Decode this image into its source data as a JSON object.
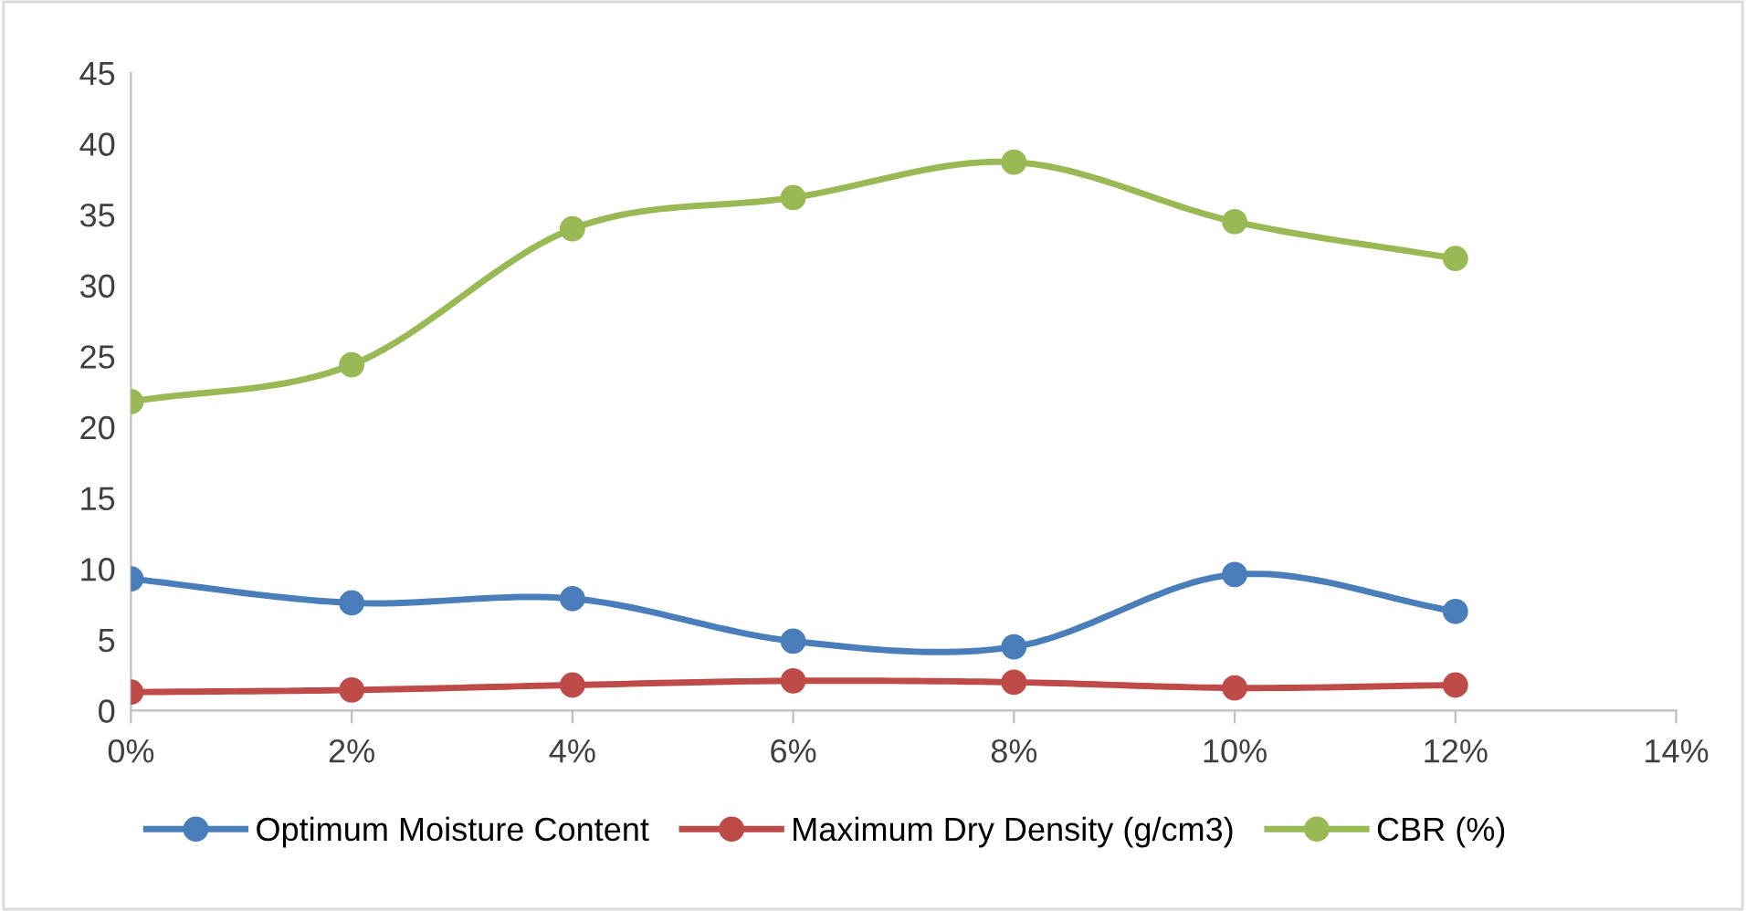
{
  "chart_data": {
    "type": "line",
    "x": [
      0,
      2,
      4,
      6,
      8,
      10,
      12
    ],
    "xlim": [
      0,
      14
    ],
    "xticks": [
      {
        "value": 0,
        "label": "0%"
      },
      {
        "value": 2,
        "label": "2%"
      },
      {
        "value": 4,
        "label": "4%"
      },
      {
        "value": 6,
        "label": "6%"
      },
      {
        "value": 8,
        "label": "8%"
      },
      {
        "value": 10,
        "label": "10%"
      },
      {
        "value": 12,
        "label": "12%"
      },
      {
        "value": 14,
        "label": "14%"
      }
    ],
    "ylim": [
      0,
      45
    ],
    "yticks": [
      0,
      5,
      10,
      15,
      20,
      25,
      30,
      35,
      40,
      45
    ],
    "grid": false,
    "legend": "bottom",
    "marker": "circle",
    "line_style": "solid",
    "series": [
      {
        "name": "Optimum Moisture Content",
        "color": "#4a7ebb",
        "values": [
          9.3,
          7.6,
          7.9,
          4.9,
          4.5,
          9.6,
          7.0
        ]
      },
      {
        "name": "Maximum Dry Density (g/cm3)",
        "color": "#be4b48",
        "values": [
          1.3,
          1.45,
          1.8,
          2.1,
          2.0,
          1.6,
          1.8
        ]
      },
      {
        "name": "CBR (%)",
        "color": "#98b954",
        "values": [
          21.8,
          24.4,
          34.0,
          36.2,
          38.7,
          34.5,
          31.9
        ]
      }
    ]
  }
}
